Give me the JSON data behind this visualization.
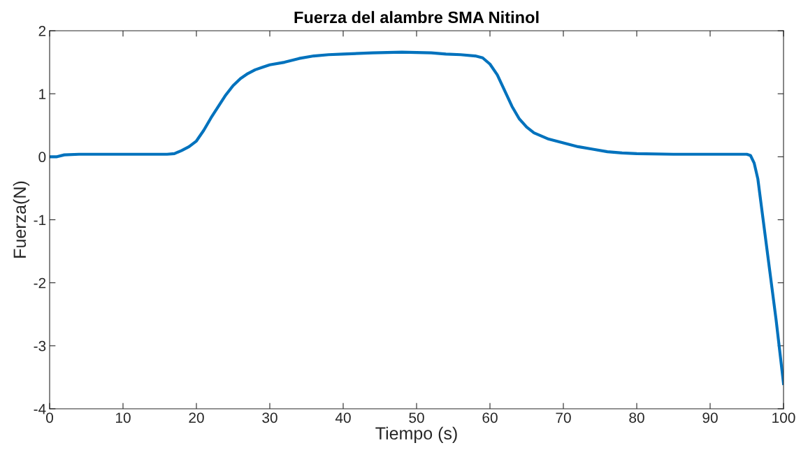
{
  "chart_data": {
    "type": "line",
    "title": "Fuerza del alambre SMA Nitinol",
    "xlabel": "Tiempo (s)",
    "ylabel": "Fuerza(N)",
    "x": [
      0,
      1,
      2,
      4,
      10,
      16,
      17,
      18,
      19,
      20,
      21,
      22,
      23,
      24,
      25,
      26,
      27,
      28,
      29,
      30,
      32,
      34,
      36,
      38,
      40,
      44,
      48,
      52,
      54,
      56,
      58,
      59,
      60,
      61,
      62,
      63,
      64,
      65,
      66,
      67,
      68,
      70,
      72,
      74,
      76,
      78,
      80,
      85,
      90,
      95,
      95.5,
      96,
      96.5,
      97,
      98,
      99,
      100
    ],
    "series": [
      {
        "color": "#0072bd",
        "values": [
          0,
          0,
          0.03,
          0.04,
          0.04,
          0.04,
          0.05,
          0.1,
          0.16,
          0.25,
          0.42,
          0.62,
          0.8,
          0.98,
          1.13,
          1.24,
          1.32,
          1.38,
          1.42,
          1.46,
          1.5,
          1.56,
          1.6,
          1.62,
          1.63,
          1.65,
          1.66,
          1.65,
          1.63,
          1.62,
          1.6,
          1.57,
          1.47,
          1.3,
          1.05,
          0.8,
          0.6,
          0.47,
          0.38,
          0.33,
          0.28,
          0.22,
          0.16,
          0.12,
          0.08,
          0.06,
          0.05,
          0.04,
          0.04,
          0.04,
          0.02,
          -0.1,
          -0.35,
          -0.8,
          -1.7,
          -2.6,
          -3.6
        ]
      }
    ],
    "xlim": [
      0,
      100
    ],
    "xticks": [
      0,
      10,
      20,
      30,
      40,
      50,
      60,
      70,
      80,
      90,
      100
    ],
    "ylim": [
      -4,
      2
    ],
    "yticks": [
      {
        "value": -4,
        "label": "-4"
      },
      {
        "value": -3,
        "label": "-3"
      },
      {
        "value": -2,
        "label": "-2"
      },
      {
        "value": -1,
        "label": "-1"
      },
      0,
      1,
      2
    ],
    "marker": "none",
    "line_style": "solid"
  }
}
